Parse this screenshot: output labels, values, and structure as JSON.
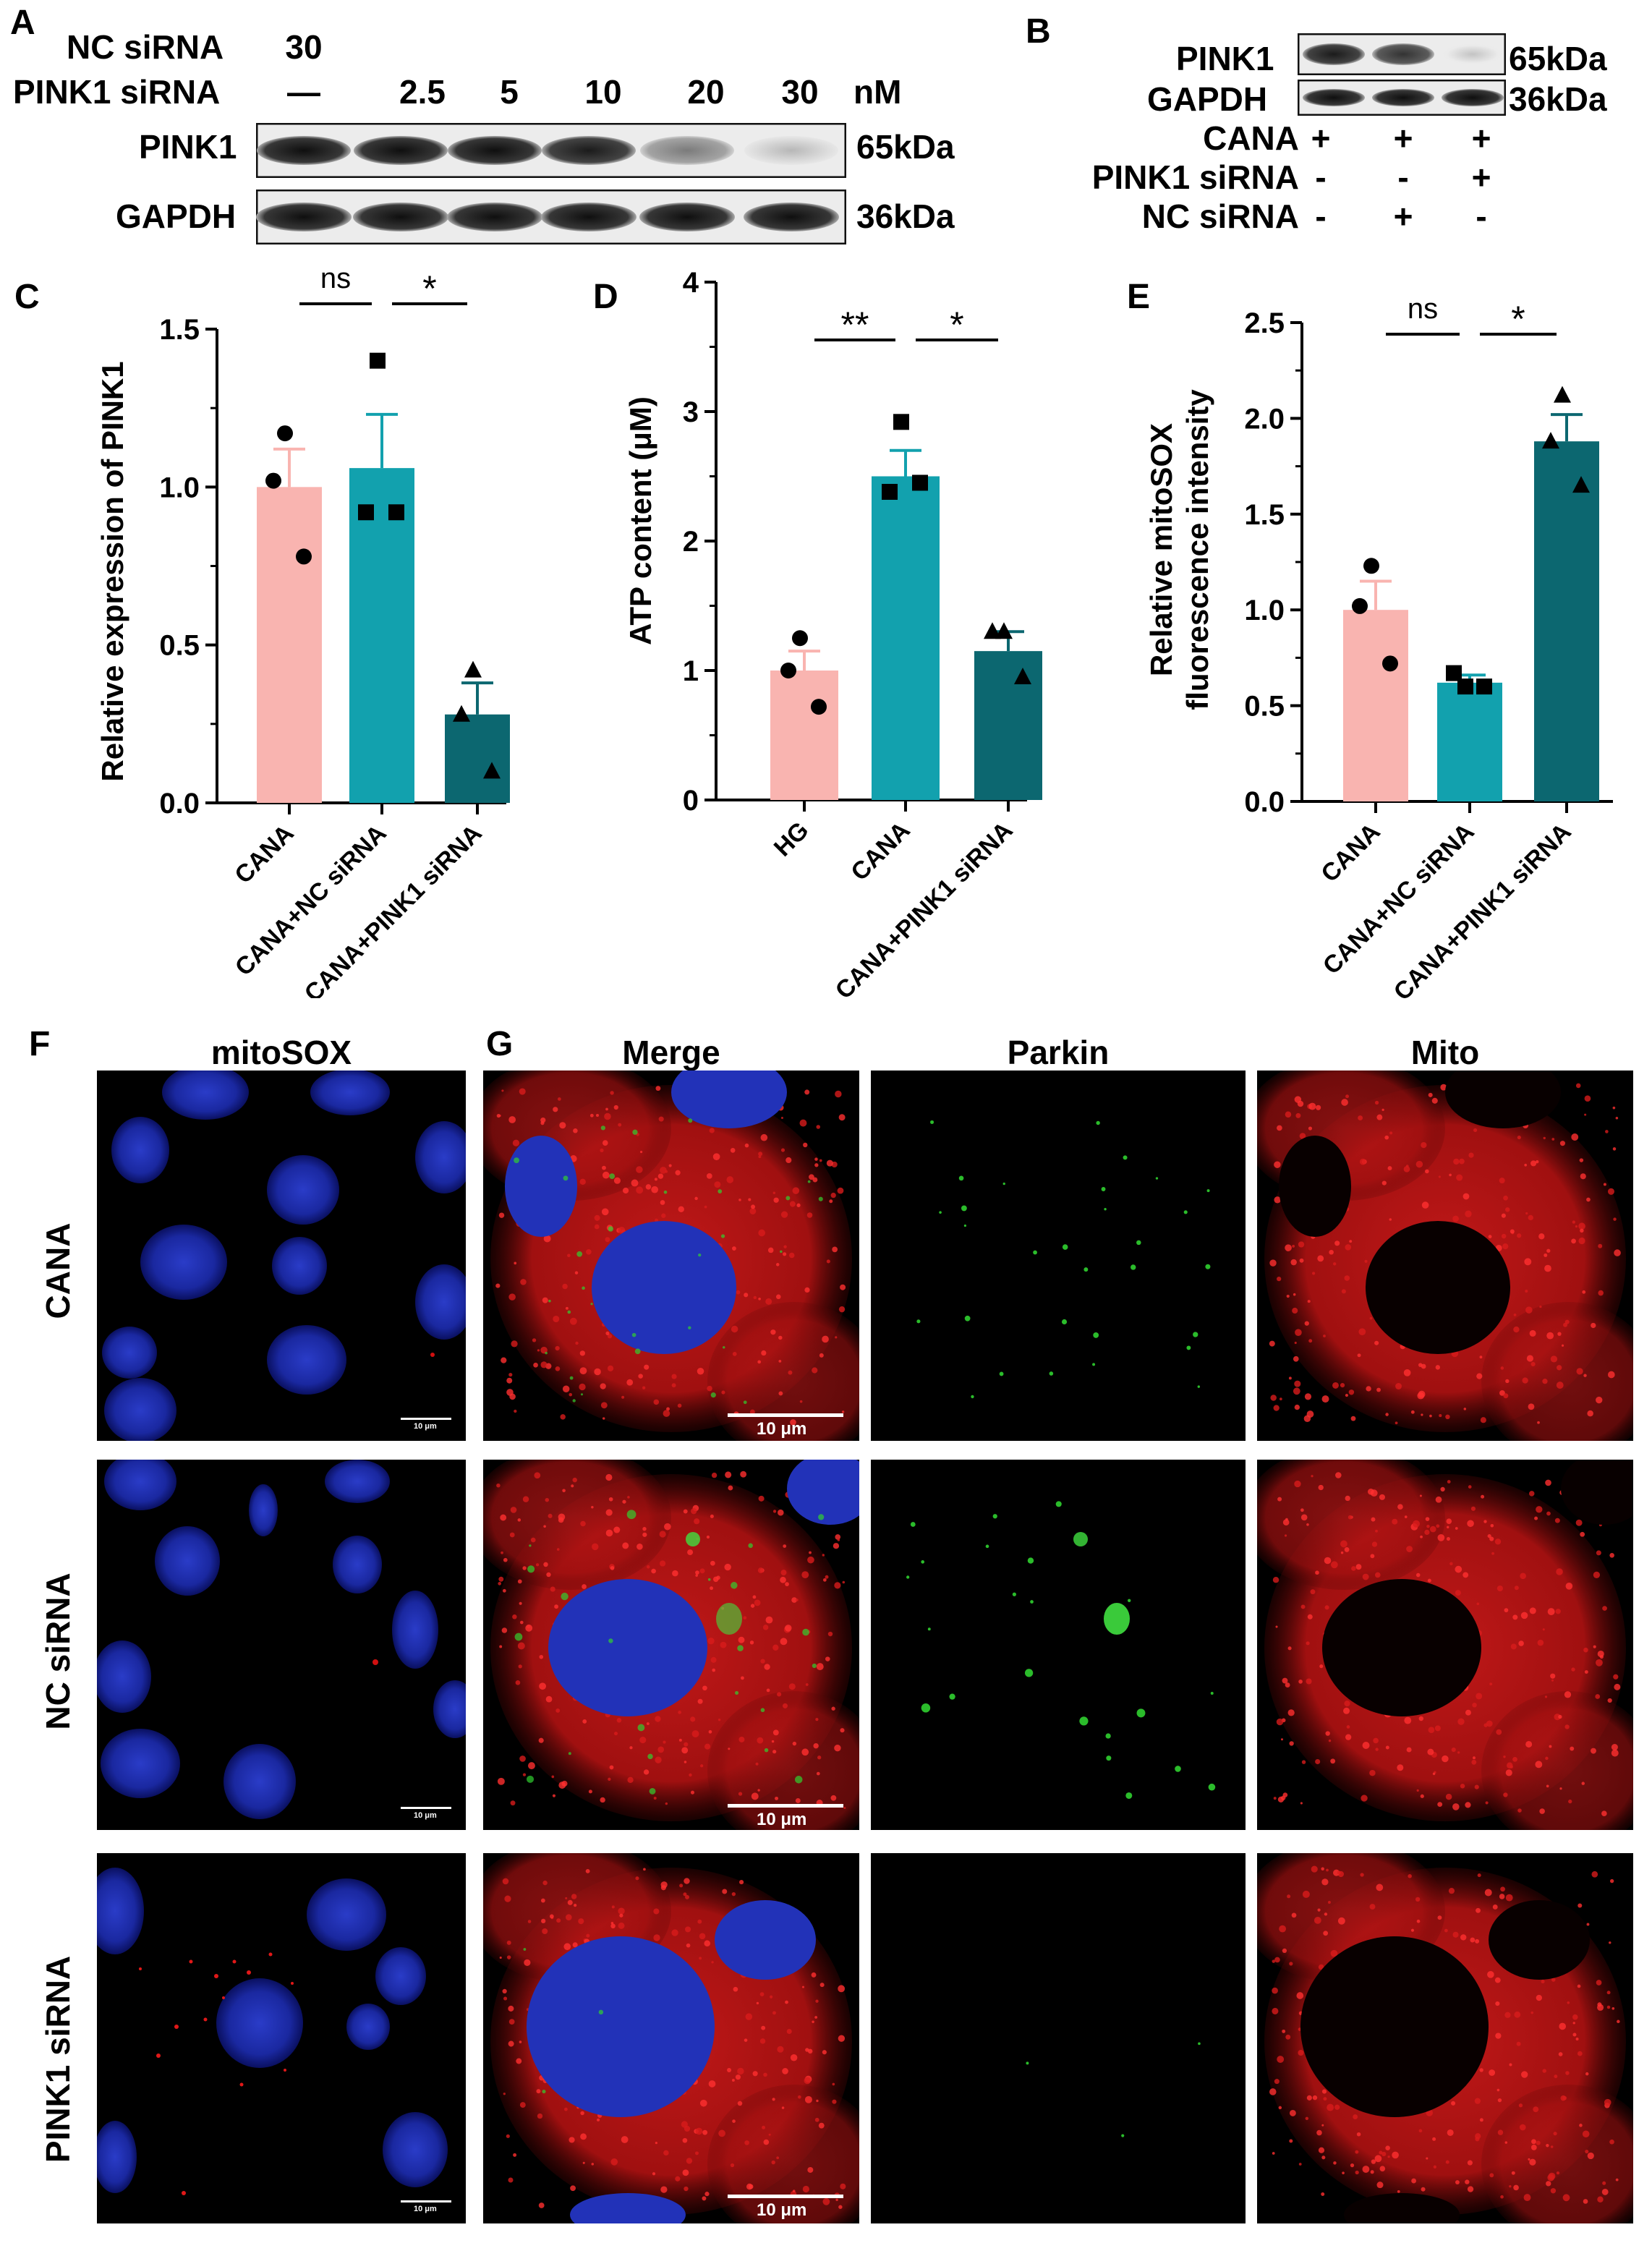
{
  "panels": {
    "A": {
      "label": "A",
      "row1": {
        "name": "NC siRNA",
        "values": [
          "30",
          "",
          "",
          "",
          "",
          ""
        ]
      },
      "row2": {
        "name": "PINK1 siRNA",
        "values": [
          "—",
          "2.5",
          "5",
          "10",
          "20",
          "30"
        ],
        "unit": "nM"
      },
      "blots": [
        {
          "name": "PINK1",
          "mw": "65kDa",
          "intensity": [
            1.0,
            1.0,
            1.0,
            0.95,
            0.55,
            0.3
          ]
        },
        {
          "name": "GAPDH",
          "mw": "36kDa",
          "intensity": [
            1.0,
            1.0,
            1.0,
            1.0,
            1.0,
            1.0
          ]
        }
      ]
    },
    "B": {
      "label": "B",
      "blots": [
        {
          "name": "PINK1",
          "mw": "65kDa",
          "intensity": [
            0.95,
            0.85,
            0.25
          ]
        },
        {
          "name": "GAPDH",
          "mw": "36kDa",
          "intensity": [
            1.0,
            1.0,
            1.0
          ]
        }
      ],
      "conditions": [
        {
          "name": "CANA",
          "values": [
            "+",
            "+",
            "+"
          ]
        },
        {
          "name": "PINK1 siRNA",
          "values": [
            "-",
            "-",
            "+"
          ]
        },
        {
          "name": "NC siRNA",
          "values": [
            "-",
            "+",
            "-"
          ]
        }
      ]
    },
    "F": {
      "label": "F",
      "title": "mitoSOX",
      "scale": "10 μm"
    },
    "G": {
      "label": "G",
      "columns": [
        "Merge",
        "Parkin",
        "Mito"
      ],
      "scale": "10 μm"
    },
    "rows": [
      "CANA",
      "NC siRNA",
      "PINK1 siRNA"
    ]
  },
  "chart_data": [
    {
      "label": "C",
      "type": "bar",
      "categories": [
        "CANA",
        "CANA+NC siRNA",
        "CANA+PINK1 siRNA"
      ],
      "values": [
        1.0,
        1.06,
        0.28
      ],
      "errors": [
        0.12,
        0.17,
        0.1
      ],
      "points": [
        [
          1.17,
          1.02,
          0.78
        ],
        [
          1.4,
          0.92,
          0.92
        ],
        [
          0.42,
          0.28,
          0.1
        ]
      ],
      "markers": [
        "circle",
        "square",
        "triangle"
      ],
      "colors": [
        "#f9b4b0",
        "#12a1ae",
        "#0c6770"
      ],
      "ylabel": "Relative expression of PINK1",
      "ylim": [
        0,
        1.5
      ],
      "ticks": [
        "0.0",
        "0.5",
        "1.0",
        "1.5"
      ],
      "significance": [
        {
          "from": 0,
          "to": 1,
          "text": "ns"
        },
        {
          "from": 1,
          "to": 2,
          "text": "*"
        }
      ]
    },
    {
      "label": "D",
      "type": "bar",
      "categories": [
        "HG",
        "CANA",
        "CANA+PINK1 siRNA"
      ],
      "values": [
        1.0,
        2.5,
        1.15
      ],
      "errors": [
        0.15,
        0.2,
        0.15
      ],
      "points": [
        [
          1.25,
          1.0,
          0.72
        ],
        [
          2.92,
          2.38,
          2.45
        ],
        [
          1.3,
          1.3,
          0.95
        ]
      ],
      "markers": [
        "circle",
        "square",
        "triangle"
      ],
      "colors": [
        "#f9b4b0",
        "#12a1ae",
        "#0c6770"
      ],
      "ylabel": "ATP content (μM)",
      "ylim": [
        0,
        4
      ],
      "ticks": [
        "0",
        "1",
        "2",
        "3",
        "4"
      ],
      "significance": [
        {
          "from": 0,
          "to": 1,
          "text": "**"
        },
        {
          "from": 1,
          "to": 2,
          "text": "*"
        }
      ]
    },
    {
      "label": "E",
      "type": "bar",
      "categories": [
        "CANA",
        "CANA+NC siRNA",
        "CANA+PINK1 siRNA"
      ],
      "values": [
        1.0,
        0.62,
        1.88
      ],
      "errors": [
        0.15,
        0.04,
        0.14
      ],
      "points": [
        [
          1.23,
          1.02,
          0.72
        ],
        [
          0.6,
          0.67,
          0.6
        ],
        [
          2.12,
          1.88,
          1.65
        ]
      ],
      "markers": [
        "circle",
        "square",
        "triangle"
      ],
      "colors": [
        "#f9b4b0",
        "#12a1ae",
        "#0c6770"
      ],
      "ylabel": [
        "Relative mitoSOX",
        "fluorescence intensity"
      ],
      "ylim": [
        0,
        2.5
      ],
      "ticks": [
        "0.0",
        "0.5",
        "1.0",
        "1.5",
        "2.0",
        "2.5"
      ],
      "significance": [
        {
          "from": 0,
          "to": 1,
          "text": "ns"
        },
        {
          "from": 1,
          "to": 2,
          "text": "*"
        }
      ]
    }
  ]
}
